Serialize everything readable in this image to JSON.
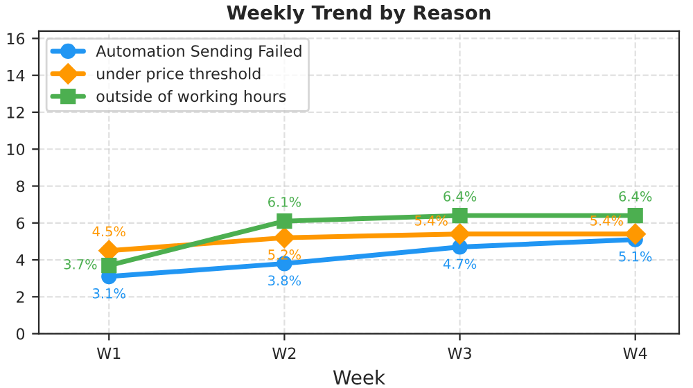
{
  "chart_data": {
    "type": "line",
    "title": "Weekly Trend by Reason",
    "xlabel": "Week",
    "categories": [
      "W1",
      "W2",
      "W3",
      "W4"
    ],
    "series": [
      {
        "name": "Automation Sending Failed",
        "color": "#2196f3",
        "marker": "circle",
        "values": [
          3.1,
          3.8,
          4.7,
          5.1
        ],
        "value_labels": [
          "3.1%",
          "3.8%",
          "4.7%",
          "5.1%"
        ]
      },
      {
        "name": "under price threshold",
        "color": "#ff9800",
        "marker": "diamond",
        "values": [
          4.5,
          5.2,
          5.4,
          5.4
        ],
        "value_labels": [
          "4.5%",
          "5.2%",
          "5.4%",
          "5.4%"
        ]
      },
      {
        "name": "outside of working hours",
        "color": "#4caf50",
        "marker": "square",
        "values": [
          3.7,
          6.1,
          6.4,
          6.4
        ],
        "value_labels": [
          "3.7%",
          "6.1%",
          "6.4%",
          "6.4%"
        ]
      }
    ],
    "ylim": [
      0,
      16.4
    ],
    "yticks": [
      0,
      2,
      4,
      6,
      8,
      10,
      12,
      14,
      16
    ],
    "grid": true,
    "legend": "top left",
    "line_style": "solid"
  }
}
